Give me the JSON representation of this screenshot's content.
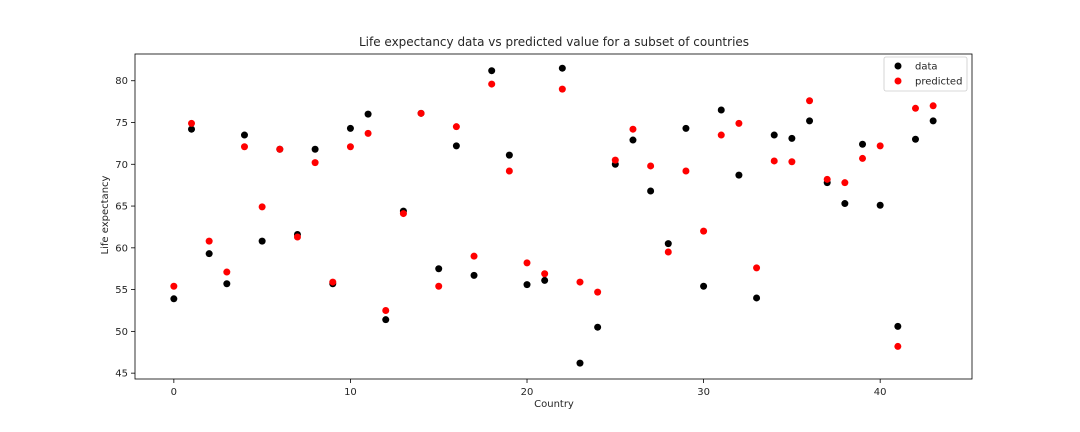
{
  "chart_data": {
    "type": "scatter",
    "title": "Life expectancy data vs predicted value for a subset of countries",
    "xlabel": "Country",
    "ylabel": "Life expectancy",
    "xlim": [
      -2.2,
      45.2
    ],
    "ylim": [
      44.3,
      83.2
    ],
    "xticks": [
      0,
      10,
      20,
      30,
      40
    ],
    "yticks": [
      45,
      50,
      55,
      60,
      65,
      70,
      75,
      80
    ],
    "grid": false,
    "legend_position": "top-right",
    "series": [
      {
        "name": "data",
        "color": "#000000",
        "x": [
          0,
          1,
          2,
          3,
          4,
          5,
          6,
          7,
          8,
          9,
          10,
          11,
          12,
          13,
          14,
          15,
          16,
          17,
          18,
          19,
          20,
          21,
          22,
          23,
          24,
          25,
          26,
          27,
          28,
          29,
          30,
          31,
          32,
          33,
          34,
          35,
          36,
          37,
          38,
          39,
          40,
          41,
          42,
          43
        ],
        "y": [
          53.9,
          74.2,
          59.3,
          55.7,
          73.5,
          60.8,
          71.8,
          61.6,
          71.8,
          55.7,
          74.3,
          76.0,
          51.4,
          64.4,
          76.1,
          57.5,
          72.2,
          56.7,
          81.2,
          71.1,
          55.6,
          56.1,
          81.5,
          46.2,
          50.5,
          70.0,
          72.9,
          66.8,
          60.5,
          74.3,
          55.4,
          76.5,
          68.7,
          54.0,
          73.5,
          73.1,
          75.2,
          67.8,
          65.3,
          72.4,
          65.1,
          50.6,
          73.0,
          75.2
        ]
      },
      {
        "name": "predicted",
        "color": "#ff0000",
        "x": [
          0,
          1,
          2,
          3,
          4,
          5,
          6,
          7,
          8,
          9,
          10,
          11,
          12,
          13,
          14,
          15,
          16,
          17,
          18,
          19,
          20,
          21,
          22,
          23,
          24,
          25,
          26,
          27,
          28,
          29,
          30,
          31,
          32,
          33,
          34,
          35,
          36,
          37,
          38,
          39,
          40,
          41,
          42,
          43
        ],
        "y": [
          55.4,
          74.9,
          60.8,
          57.1,
          72.1,
          64.9,
          71.8,
          61.3,
          70.2,
          55.9,
          72.1,
          73.7,
          52.5,
          64.1,
          76.1,
          55.4,
          74.5,
          59.0,
          79.6,
          69.2,
          58.2,
          56.9,
          79.0,
          55.9,
          54.7,
          70.5,
          74.2,
          69.8,
          59.5,
          69.2,
          62.0,
          73.5,
          74.9,
          57.6,
          70.4,
          70.3,
          77.6,
          68.2,
          67.8,
          70.7,
          72.2,
          48.2,
          76.7,
          77.0
        ]
      }
    ]
  }
}
